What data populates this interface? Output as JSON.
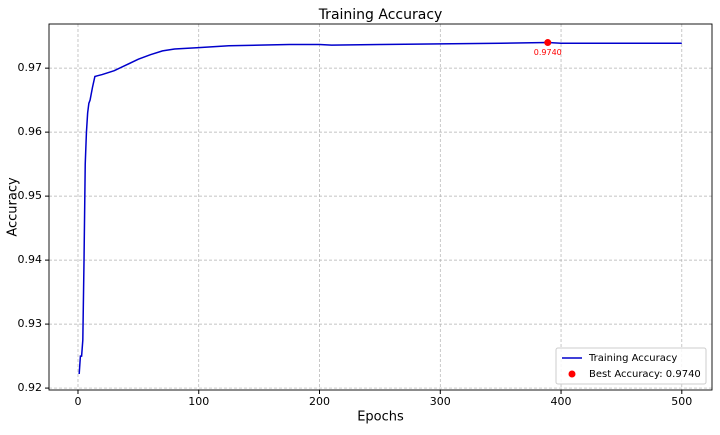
{
  "chart_data": {
    "type": "line",
    "title": "Training Accuracy",
    "xlabel": "Epochs",
    "ylabel": "Accuracy",
    "xlim": [
      -24,
      525
    ],
    "ylim": [
      0.9197,
      0.9769
    ],
    "xticks": [
      0,
      100,
      200,
      300,
      400,
      500
    ],
    "yticks": [
      0.92,
      0.93,
      0.94,
      0.95,
      0.96,
      0.97
    ],
    "grid": true,
    "legend": "lower right",
    "series": [
      {
        "name": "Training Accuracy",
        "color": "#0000cc",
        "kind": "line",
        "x": [
          1,
          2,
          3,
          4,
          5,
          6,
          7,
          8,
          9,
          10,
          12,
          14,
          16,
          20,
          30,
          40,
          50,
          60,
          70,
          80,
          100,
          125,
          150,
          175,
          200,
          210,
          250,
          300,
          350,
          389,
          400,
          450,
          500
        ],
        "values": [
          0.9222,
          0.925,
          0.925,
          0.9275,
          0.94,
          0.955,
          0.96,
          0.963,
          0.9645,
          0.965,
          0.967,
          0.9687,
          0.9688,
          0.969,
          0.9696,
          0.9705,
          0.9714,
          0.9721,
          0.9727,
          0.973,
          0.9732,
          0.9735,
          0.9736,
          0.9737,
          0.9737,
          0.9736,
          0.9737,
          0.9738,
          0.9739,
          0.974,
          0.9739,
          0.9739,
          0.9739
        ]
      },
      {
        "name": "Best Accuracy: 0.9740",
        "color": "#ff0000",
        "kind": "scatter",
        "x": [
          389
        ],
        "values": [
          0.974
        ],
        "value_labels": [
          "0.9740"
        ]
      }
    ]
  }
}
